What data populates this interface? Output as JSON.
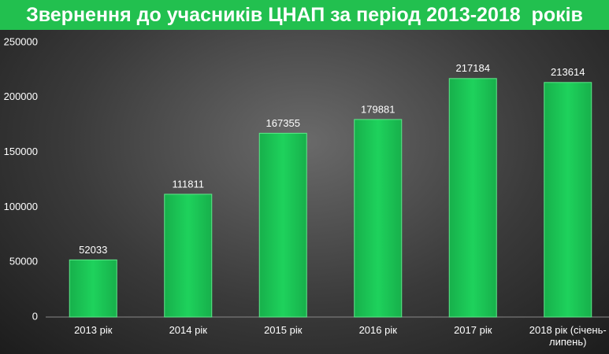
{
  "chart_data": {
    "type": "bar",
    "title": "Звернення до учасників ЦНАП за період 2013-2018  років",
    "categories": [
      "2013 рік",
      "2014 рік",
      "2015 рік",
      "2016 рік",
      "2017 рік",
      "2018 рік (січень-липень)"
    ],
    "values": [
      52033,
      111811,
      167355,
      179881,
      217184,
      213614
    ],
    "color": "#1ed25c",
    "ylim": [
      0,
      250000
    ],
    "yticks": [
      0,
      50000,
      100000,
      150000,
      200000,
      250000
    ],
    "grid": false
  }
}
